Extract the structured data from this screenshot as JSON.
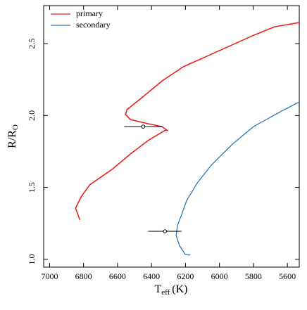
{
  "chart_data": {
    "type": "line",
    "x_label": {
      "main": "T",
      "sub": "eff",
      "rest": "(K)"
    },
    "y_label": {
      "main": "R/R",
      "sub": "O"
    },
    "xlim": [
      7035,
      5530
    ],
    "ylim": [
      0.946,
      2.764
    ],
    "xticks": [
      7000,
      6800,
      6600,
      6400,
      6200,
      6000,
      5800,
      5600
    ],
    "yticks": [
      {
        "value": 1.0,
        "label": "1.0"
      },
      1.5,
      {
        "value": 2.0,
        "label": "2.0"
      },
      2.5
    ],
    "legend": "upper left",
    "series": [
      {
        "name": "primary",
        "color": "#e8211d",
        "x": [
          6822,
          6847,
          6814,
          6764,
          6627,
          6524,
          6420,
          6317,
          6304,
          6338,
          6420,
          6524,
          6553,
          6545,
          6462,
          6337,
          6213,
          6048,
          5965,
          5799,
          5675,
          5530
        ],
        "values": [
          1.274,
          1.356,
          1.435,
          1.518,
          1.63,
          1.733,
          1.826,
          1.899,
          1.894,
          1.923,
          1.943,
          1.972,
          2.006,
          2.04,
          2.119,
          2.241,
          2.339,
          2.426,
          2.47,
          2.558,
          2.617,
          2.646
        ],
        "marker": {
          "x": 6449,
          "y": 1.923,
          "xerr": 112
        }
      },
      {
        "name": "secondary",
        "color": "#2f79b5",
        "x": [
          6172,
          6201,
          6234,
          6255,
          6246,
          6222,
          6193,
          6130,
          6048,
          5923,
          5799,
          5634,
          5530
        ],
        "values": [
          1.029,
          1.034,
          1.093,
          1.166,
          1.239,
          1.313,
          1.41,
          1.532,
          1.655,
          1.801,
          1.923,
          2.031,
          2.094
        ],
        "marker": {
          "x": 6321,
          "y": 1.195,
          "xerr": 99
        }
      }
    ]
  }
}
